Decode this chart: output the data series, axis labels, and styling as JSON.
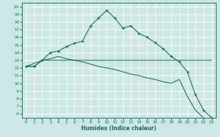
{
  "xlabel": "Humidex (Indice chaleur)",
  "bg_color": "#cce8e4",
  "grid_color": "#ffffff",
  "line_color": "#1a6b5a",
  "xlim": [
    -0.5,
    23.5
  ],
  "ylim": [
    5.5,
    20.5
  ],
  "yticks": [
    6,
    7,
    8,
    9,
    10,
    11,
    12,
    13,
    14,
    15,
    16,
    17,
    18,
    19,
    20
  ],
  "xticks": [
    0,
    1,
    2,
    3,
    4,
    5,
    6,
    7,
    8,
    9,
    10,
    11,
    12,
    13,
    14,
    15,
    16,
    17,
    18,
    19,
    20,
    21,
    22,
    23
  ],
  "line1_x": [
    0,
    1,
    2,
    3,
    4,
    5,
    6,
    7,
    8,
    9,
    10,
    11,
    12,
    13,
    14,
    15,
    16,
    17,
    18,
    19,
    20,
    21,
    22,
    23
  ],
  "line1_y": [
    12.2,
    12.2,
    13.0,
    14.0,
    14.2,
    14.8,
    15.2,
    15.5,
    17.5,
    18.5,
    19.5,
    18.5,
    17.2,
    17.5,
    16.5,
    16.0,
    15.3,
    14.5,
    13.5,
    12.8,
    11.5,
    8.5,
    6.5,
    5.5
  ],
  "line2_x": [
    0,
    2,
    19,
    23
  ],
  "line2_y": [
    12.2,
    13.0,
    13.0,
    13.0
  ],
  "line3_x": [
    0,
    1,
    2,
    3,
    4,
    5,
    6,
    7,
    8,
    9,
    10,
    11,
    12,
    13,
    14,
    15,
    16,
    17,
    18,
    19,
    20,
    21,
    22,
    23
  ],
  "line3_y": [
    12.2,
    12.2,
    13.0,
    13.2,
    13.5,
    13.2,
    13.0,
    12.8,
    12.5,
    12.2,
    12.0,
    11.8,
    11.5,
    11.2,
    11.0,
    10.7,
    10.5,
    10.2,
    10.0,
    10.5,
    8.3,
    6.5,
    5.5,
    null
  ]
}
